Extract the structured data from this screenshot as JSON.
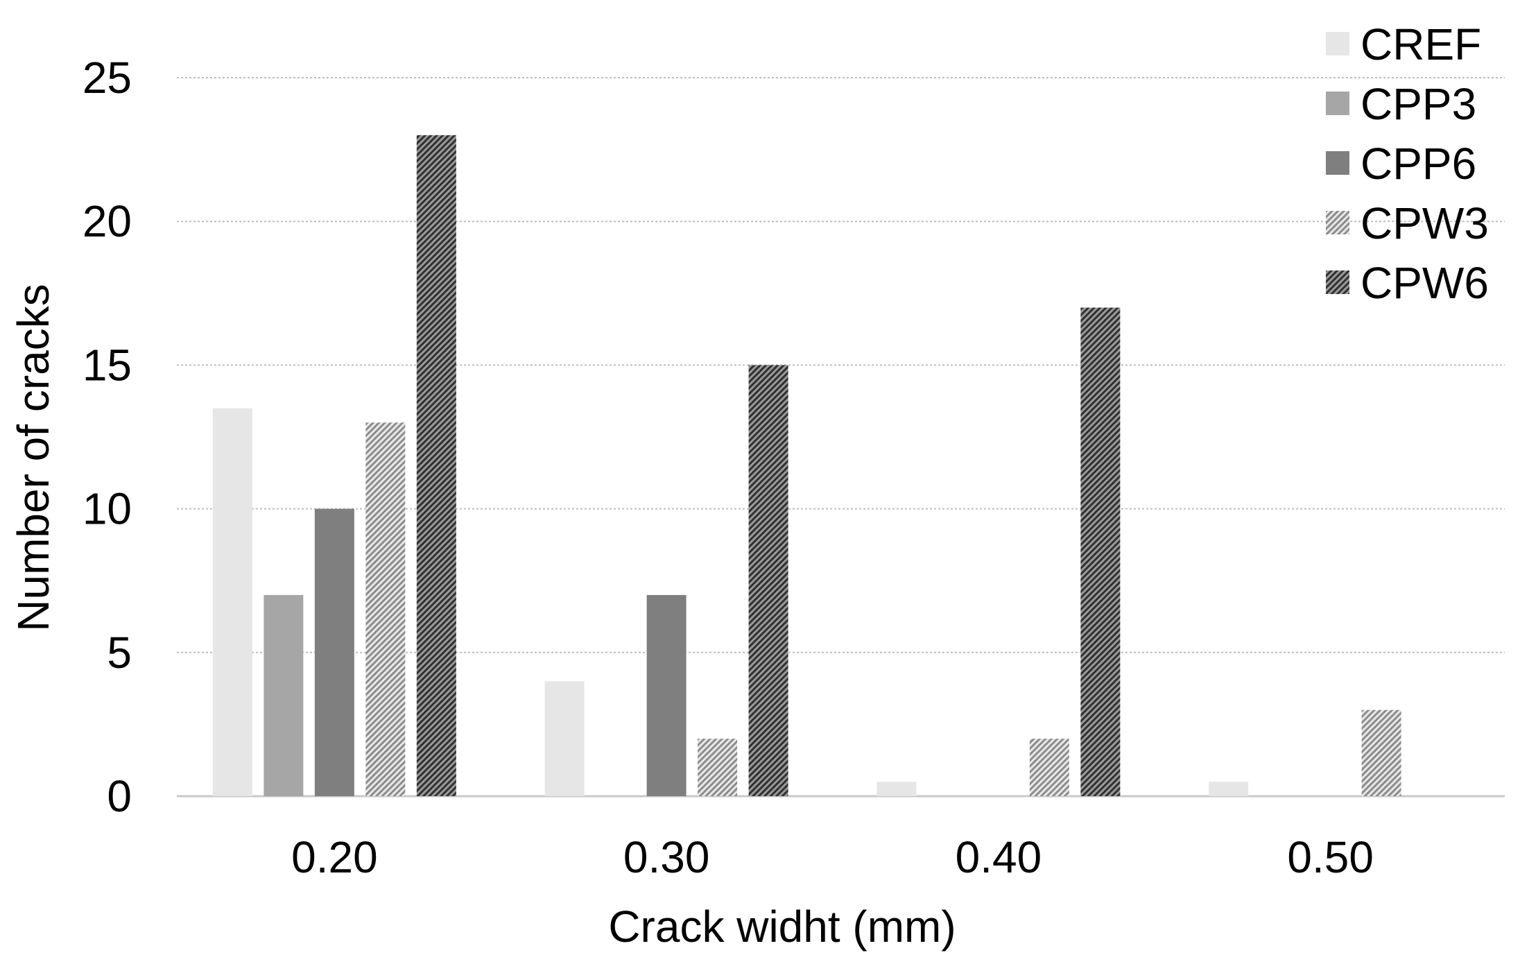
{
  "chart_data": {
    "type": "bar",
    "categories": [
      "0.20",
      "0.30",
      "0.40",
      "0.50"
    ],
    "series": [
      {
        "name": "CREF",
        "values": [
          13.5,
          4,
          0.5,
          0.5
        ],
        "color": "#e6e6e6",
        "pattern": "solid"
      },
      {
        "name": "CPP3",
        "values": [
          7,
          0,
          0,
          0
        ],
        "color": "#a6a6a6",
        "pattern": "solid"
      },
      {
        "name": "CPP6",
        "values": [
          10,
          7,
          0,
          0
        ],
        "color": "#7f7f7f",
        "pattern": "solid"
      },
      {
        "name": "CPW3",
        "values": [
          13,
          2,
          2,
          3
        ],
        "color": "#8c8c8c",
        "pattern": "light-diagonal"
      },
      {
        "name": "CPW6",
        "values": [
          23,
          15,
          17,
          0
        ],
        "color": "#404040",
        "pattern": "dark-diagonal"
      }
    ],
    "title": "",
    "xlabel": "Crack widht (mm)",
    "ylabel": "Number of cracks",
    "ylim": [
      0,
      25
    ],
    "yticks": [
      "0",
      "5",
      "10",
      "15",
      "20",
      "25"
    ],
    "grid": true,
    "legend_position": "top-right"
  }
}
